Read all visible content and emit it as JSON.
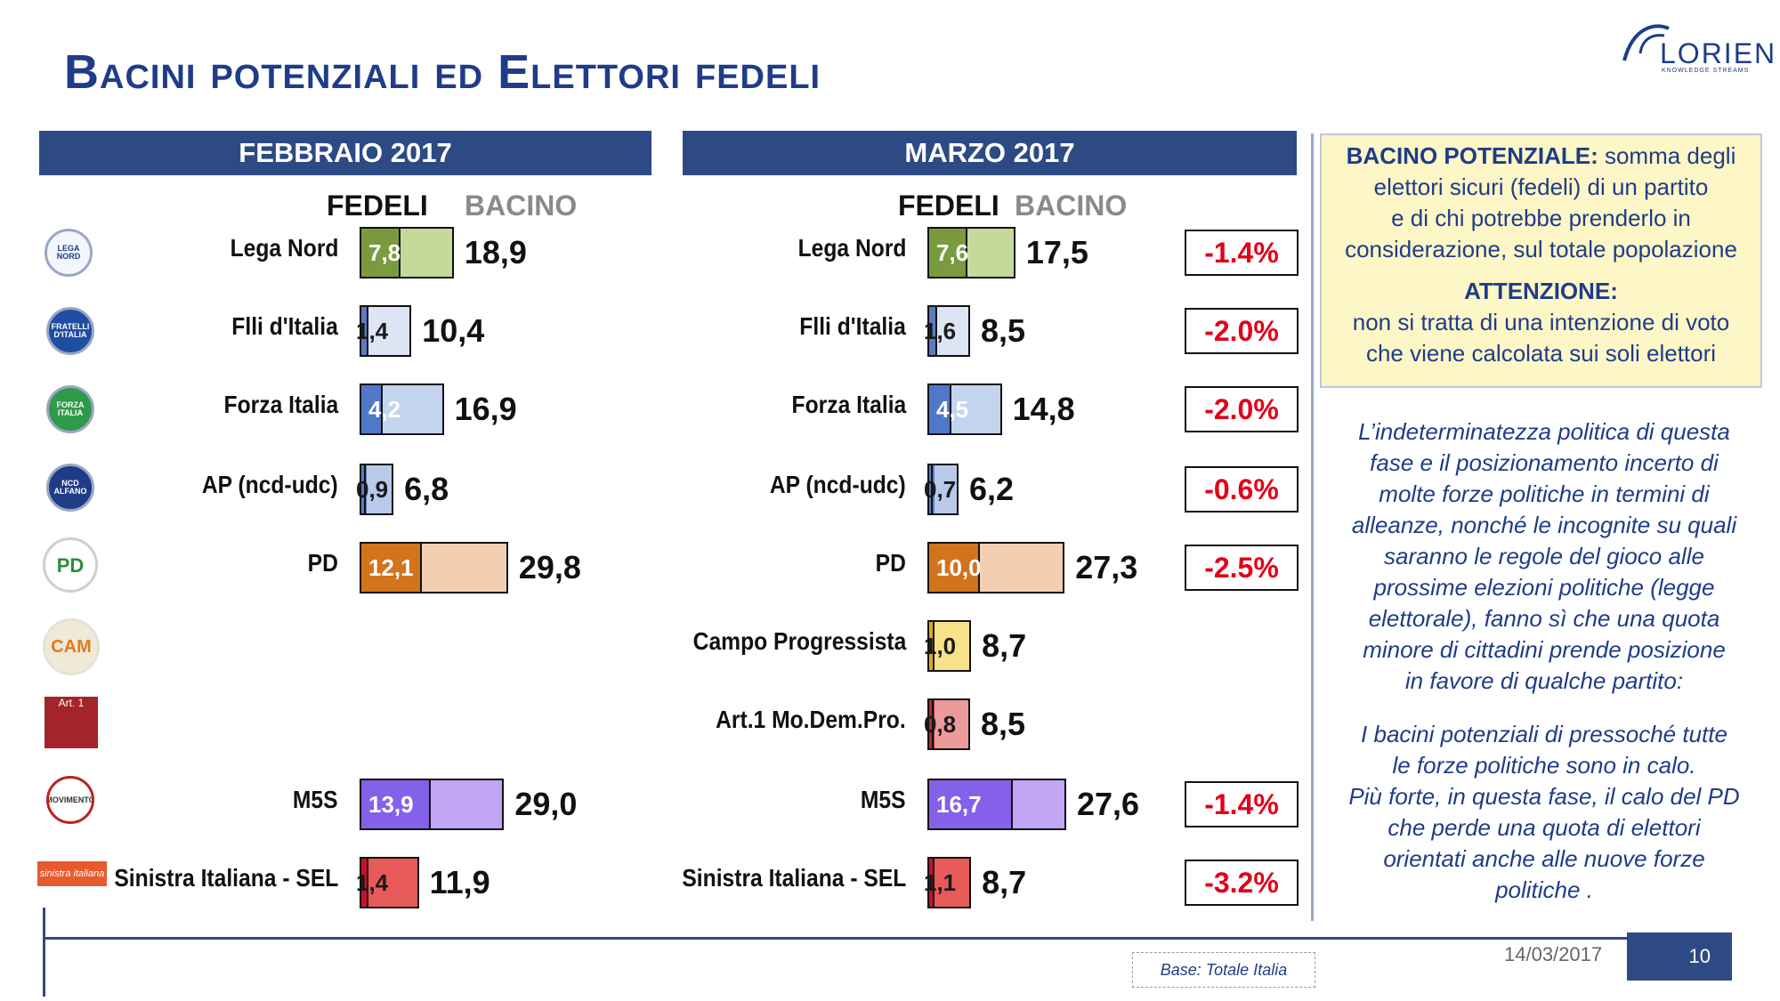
{
  "title": "Bacini potenziali ed Elettori fedeli",
  "brand": {
    "name": "LORIEN",
    "tagline": "KNOWLEDGE STREAMS"
  },
  "panels": {
    "feb": {
      "title": "FEBBRAIO 2017",
      "fedeli_label": "FEDELI",
      "bacino_label": "BACINO"
    },
    "mar": {
      "title": "MARZO 2017",
      "fedeli_label": "FEDELI",
      "bacino_label": "BACINO"
    }
  },
  "logos": {
    "lega": "LEGA NORD",
    "fdi": "FRATELLI D'ITALIA",
    "fi": "FORZA ITALIA",
    "ap": "NCD ALFANO",
    "pd": "PD",
    "cam": "CAM",
    "art1": "Art. 1",
    "m5s": "MOVIMENTO",
    "si": "sinistra italiana"
  },
  "chart_data": [
    {
      "type": "bar",
      "title": "FEBBRAIO 2017",
      "categories": [
        "Lega Nord",
        "Flli d'Italia",
        "Forza Italia",
        "AP (ncd-udc)",
        "PD",
        "M5S",
        "Sinistra Italiana - SEL"
      ],
      "series": [
        {
          "name": "FEDELI",
          "values": [
            7.8,
            1.4,
            4.2,
            0.9,
            12.1,
            13.9,
            1.4
          ]
        },
        {
          "name": "BACINO",
          "values": [
            18.9,
            10.4,
            16.9,
            6.8,
            29.8,
            29.0,
            11.9
          ]
        }
      ],
      "labels": {
        "fedeli": [
          "7,8",
          "1,4",
          "4,2",
          "0,9",
          "12,1",
          "13,9",
          "1,4"
        ],
        "bacino": [
          "18,9",
          "10,4",
          "16,9",
          "6,8",
          "29,8",
          "29,0",
          "11,9"
        ]
      }
    },
    {
      "type": "bar",
      "title": "MARZO 2017",
      "categories": [
        "Lega Nord",
        "Flli d'Italia",
        "Forza Italia",
        "AP (ncd-udc)",
        "PD",
        "Campo Progressista",
        "Art.1 Mo.Dem.Pro.",
        "M5S",
        "Sinistra Italiana - SEL"
      ],
      "series": [
        {
          "name": "FEDELI",
          "values": [
            7.6,
            1.6,
            4.5,
            0.7,
            10.0,
            1.0,
            0.8,
            16.7,
            1.1
          ]
        },
        {
          "name": "BACINO",
          "values": [
            17.5,
            8.5,
            14.8,
            6.2,
            27.3,
            8.7,
            8.5,
            27.6,
            8.7
          ]
        }
      ],
      "labels": {
        "fedeli": [
          "7,6",
          "1,6",
          "4,5",
          "0,7",
          "10,0",
          "1,0",
          "0,8",
          "16,7",
          "1,1"
        ],
        "bacino": [
          "17,5",
          "8,5",
          "14,8",
          "6,2",
          "27,3",
          "8,7",
          "8,5",
          "27,6",
          "8,7"
        ]
      },
      "variazione": [
        "-1.4%",
        "-2.0%",
        "-2.0%",
        "-0.6%",
        "-2.5%",
        "",
        "",
        "-1.4%",
        "-3.2%"
      ]
    }
  ],
  "colors": {
    "lega": [
      "#7a9a3e",
      "#c5d99a"
    ],
    "fdi": [
      "#5b7cc4",
      "#dde4f3"
    ],
    "fi": [
      "#4f79c8",
      "#c3d4ee"
    ],
    "ap": [
      "#5b7cc4",
      "#b8c9ea"
    ],
    "pd": [
      "#d2731e",
      "#f2cfb0"
    ],
    "cp": [
      "#e0a82a",
      "#f7e28a"
    ],
    "art1": [
      "#b42b2b",
      "#ec9a9a"
    ],
    "m5s": [
      "#8560e8",
      "#c3a5f5"
    ],
    "si": [
      "#c8102e",
      "#e65a5a"
    ]
  },
  "info": {
    "heading1": "BACINO POTENZIALE:",
    "text1a": " somma degli",
    "text1b": "elettori sicuri (fedeli) di un partito",
    "text1c": "e di chi potrebbe prenderlo in",
    "text1d": "considerazione, sul totale popolazione",
    "heading2": "ATTENZIONE:",
    "text2a": "non si tratta di una intenzione di voto",
    "text2b": "che viene calcolata sui soli elettori"
  },
  "notes": {
    "p1": [
      "L’indeterminatezza politica di questa",
      "fase e il posizionamento incerto di",
      "molte forze politiche in termini di",
      "alleanze, nonché le incognite su quali",
      "saranno le regole del gioco alle",
      "prossime elezioni politiche (legge",
      "elettorale), fanno sì che una quota",
      "minore di cittadini prende posizione",
      "in favore di qualche partito:"
    ],
    "p2": [
      "I bacini potenziali di pressoché tutte",
      "le forze politiche sono in calo.",
      "Più forte, in questa fase, il calo del PD",
      "che perde una quota di elettori",
      "orientati anche alle nuove forze",
      "politiche ."
    ]
  },
  "footer": {
    "base": "Base: Totale Italia",
    "date": "14/03/2017",
    "page": "10"
  }
}
